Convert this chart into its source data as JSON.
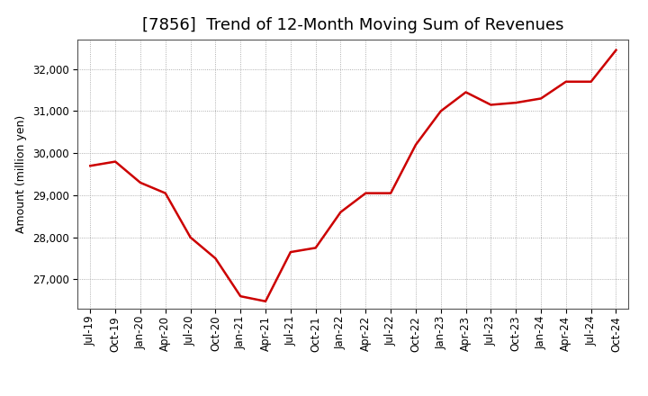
{
  "title": "[7856]  Trend of 12-Month Moving Sum of Revenues",
  "ylabel": "Amount (million yen)",
  "line_color": "#cc0000",
  "bg_color": "#ffffff",
  "plot_bg_color": "#ffffff",
  "grid_color": "#999999",
  "x_labels": [
    "Jul-19",
    "Oct-19",
    "Jan-20",
    "Apr-20",
    "Jul-20",
    "Oct-20",
    "Jan-21",
    "Apr-21",
    "Jul-21",
    "Oct-21",
    "Jan-22",
    "Apr-22",
    "Jul-22",
    "Oct-22",
    "Jan-23",
    "Apr-23",
    "Jul-23",
    "Oct-23",
    "Jan-24",
    "Apr-24",
    "Jul-24",
    "Oct-24"
  ],
  "values": [
    29700,
    29800,
    29300,
    29050,
    28000,
    27500,
    26600,
    26480,
    27650,
    27750,
    28600,
    29050,
    29050,
    30200,
    31000,
    31450,
    31150,
    31200,
    31300,
    31700,
    31700,
    32450
  ],
  "ylim_min": 26300,
  "ylim_max": 32700,
  "yticks": [
    27000,
    28000,
    29000,
    30000,
    31000,
    32000
  ],
  "title_fontsize": 13,
  "axis_fontsize": 9,
  "tick_fontsize": 8.5,
  "line_width": 1.8
}
